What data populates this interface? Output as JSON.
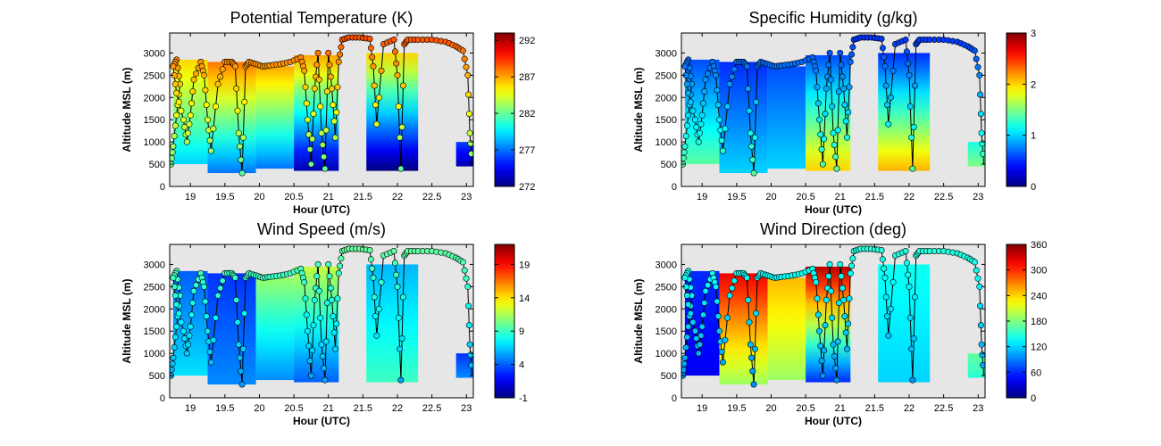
{
  "figure": {
    "background": "#ffffff",
    "axes_background": "#e6e6e6",
    "colormap": "jet"
  },
  "chart_data": [
    {
      "type": "heatmap",
      "title": "Potential Temperature (K)",
      "xlabel": "Hour (UTC)",
      "ylabel": "Altitude MSL (m)",
      "xlim": [
        18.7,
        23.1
      ],
      "ylim": [
        0,
        3450
      ],
      "x_ticks": [
        19,
        19.5,
        20,
        20.5,
        21,
        21.5,
        22,
        22.5,
        23
      ],
      "y_ticks": [
        0,
        500,
        1000,
        1500,
        2000,
        2500,
        3000
      ],
      "colorbar": {
        "range": [
          272,
          293
        ],
        "ticks": [
          272,
          277,
          282,
          287,
          292
        ]
      },
      "profiles": [
        {
          "x0": 18.75,
          "x1": 19.25,
          "ytop": 2850,
          "ybot": 500,
          "vtop": 286,
          "vbot": 279
        },
        {
          "x0": 19.25,
          "x1": 19.95,
          "ytop": 2800,
          "ybot": 300,
          "vtop": 288,
          "vbot": 277
        },
        {
          "x0": 19.95,
          "x1": 20.5,
          "ytop": 2700,
          "ybot": 400,
          "vtop": 287,
          "vbot": 277
        },
        {
          "x0": 20.5,
          "x1": 21.15,
          "ytop": 2950,
          "ybot": 350,
          "vtop": 287,
          "vbot": 273
        },
        {
          "x0": 21.55,
          "x1": 22.3,
          "ytop": 3000,
          "ybot": 350,
          "vtop": 286,
          "vbot": 272
        },
        {
          "x0": 22.85,
          "x1": 23.1,
          "ytop": 1000,
          "ybot": 450,
          "vtop": 276,
          "vbot": 273
        }
      ],
      "track_colored": {
        "vtop": 289,
        "vbot": 281
      }
    },
    {
      "type": "heatmap",
      "title": "Specific Humidity (g/kg)",
      "xlabel": "Hour (UTC)",
      "ylabel": "Altitude MSL (m)",
      "xlim": [
        18.7,
        23.1
      ],
      "ylim": [
        0,
        3450
      ],
      "x_ticks": [
        19,
        19.5,
        20,
        20.5,
        21,
        21.5,
        22,
        22.5,
        23
      ],
      "y_ticks": [
        0,
        500,
        1000,
        1500,
        2000,
        2500,
        3000
      ],
      "colorbar": {
        "range": [
          0,
          3
        ],
        "ticks": [
          0,
          1,
          2,
          3
        ]
      },
      "profiles": [
        {
          "x0": 18.75,
          "x1": 19.25,
          "ytop": 2850,
          "ybot": 500,
          "vtop": 0.6,
          "vbot": 1.4
        },
        {
          "x0": 19.25,
          "x1": 19.95,
          "ytop": 2800,
          "ybot": 300,
          "vtop": 0.5,
          "vbot": 1.0
        },
        {
          "x0": 19.95,
          "x1": 20.5,
          "ytop": 2700,
          "ybot": 400,
          "vtop": 0.6,
          "vbot": 1.0
        },
        {
          "x0": 20.5,
          "x1": 21.15,
          "ytop": 2950,
          "ybot": 350,
          "vtop": 0.6,
          "vbot": 2.0
        },
        {
          "x0": 21.55,
          "x1": 22.3,
          "ytop": 3000,
          "ybot": 350,
          "vtop": 0.5,
          "vbot": 2.1
        },
        {
          "x0": 22.85,
          "x1": 23.1,
          "ytop": 1000,
          "ybot": 450,
          "vtop": 1.2,
          "vbot": 1.5
        }
      ],
      "track_colored": {
        "vtop": 0.5,
        "vbot": 1.5
      }
    },
    {
      "type": "heatmap",
      "title": "Wind Speed (m/s)",
      "xlabel": "Hour (UTC)",
      "ylabel": "Altitude MSL (m)",
      "xlim": [
        18.7,
        23.1
      ],
      "ylim": [
        0,
        3450
      ],
      "x_ticks": [
        19,
        19.5,
        20,
        20.5,
        21,
        21.5,
        22,
        22.5,
        23
      ],
      "y_ticks": [
        0,
        500,
        1000,
        1500,
        2000,
        2500,
        3000
      ],
      "colorbar": {
        "range": [
          -1,
          22
        ],
        "ticks": [
          -1,
          4,
          9,
          14,
          19
        ]
      },
      "profiles": [
        {
          "x0": 18.75,
          "x1": 19.25,
          "ytop": 2850,
          "ybot": 500,
          "vtop": 4,
          "vbot": 7
        },
        {
          "x0": 19.25,
          "x1": 19.95,
          "ytop": 2800,
          "ybot": 300,
          "vtop": 3,
          "vbot": 5
        },
        {
          "x0": 19.95,
          "x1": 20.5,
          "ytop": 2700,
          "ybot": 400,
          "vtop": 11,
          "vbot": 5
        },
        {
          "x0": 20.5,
          "x1": 21.15,
          "ytop": 2950,
          "ybot": 350,
          "vtop": 12,
          "vbot": 4
        },
        {
          "x0": 21.55,
          "x1": 22.3,
          "ytop": 3000,
          "ybot": 350,
          "vtop": 6,
          "vbot": 9
        },
        {
          "x0": 22.85,
          "x1": 23.1,
          "ytop": 1000,
          "ybot": 450,
          "vtop": 3,
          "vbot": 5
        }
      ],
      "track_colored": {
        "vtop": 10,
        "vbot": 5
      }
    },
    {
      "type": "heatmap",
      "title": "Wind Direction (deg)",
      "xlabel": "Hour (UTC)",
      "ylabel": "Altitude MSL (m)",
      "xlim": [
        18.7,
        23.1
      ],
      "ylim": [
        0,
        3450
      ],
      "x_ticks": [
        19,
        19.5,
        20,
        20.5,
        21,
        21.5,
        22,
        22.5,
        23
      ],
      "y_ticks": [
        0,
        500,
        1000,
        1500,
        2000,
        2500,
        3000
      ],
      "colorbar": {
        "range": [
          0,
          360
        ],
        "ticks": [
          0,
          60,
          120,
          180,
          240,
          300,
          360
        ]
      },
      "profiles": [
        {
          "x0": 18.75,
          "x1": 19.25,
          "ytop": 2850,
          "ybot": 500,
          "vtop": 60,
          "vbot": 40
        },
        {
          "x0": 19.25,
          "x1": 19.95,
          "ytop": 2800,
          "ybot": 300,
          "vtop": 320,
          "vbot": 190
        },
        {
          "x0": 19.95,
          "x1": 20.5,
          "ytop": 2700,
          "ybot": 400,
          "vtop": 250,
          "vbot": 190
        },
        {
          "x0": 20.5,
          "x1": 21.15,
          "ytop": 2950,
          "ybot": 350,
          "vtop": 340,
          "vbot": 60
        },
        {
          "x0": 21.55,
          "x1": 22.3,
          "ytop": 3000,
          "ybot": 350,
          "vtop": 140,
          "vbot": 120
        },
        {
          "x0": 22.85,
          "x1": 23.1,
          "ytop": 1000,
          "ybot": 450,
          "vtop": 170,
          "vbot": 150
        }
      ],
      "track_colored": {
        "vtop": 150,
        "vbot": 90
      }
    }
  ],
  "flight_track": {
    "x": [
      18.72,
      18.75,
      18.8,
      18.85,
      18.8,
      18.75,
      18.8,
      18.9,
      18.95,
      19.0,
      19.05,
      19.15,
      19.2,
      19.25,
      19.3,
      19.4,
      19.5,
      19.6,
      19.65,
      19.7,
      19.75,
      19.8,
      19.85,
      19.95,
      20.05,
      20.15,
      20.3,
      20.45,
      20.6,
      20.65,
      20.7,
      20.75,
      20.8,
      20.85,
      20.9,
      20.95,
      21.0,
      21.05,
      21.1,
      21.15,
      21.2,
      21.3,
      21.45,
      21.6,
      21.65,
      21.7,
      21.8,
      21.95,
      22.0,
      22.05,
      22.1,
      22.15,
      22.3,
      22.5,
      22.7,
      22.85,
      22.95,
      23.02,
      23.05,
      23.08
    ],
    "y": [
      500,
      900,
      1600,
      2300,
      2850,
      2700,
      2100,
      1500,
      1000,
      1600,
      2400,
      2800,
      2500,
      1500,
      800,
      2300,
      2800,
      2800,
      2700,
      1200,
      300,
      2700,
      2800,
      2750,
      2700,
      2720,
      2750,
      2800,
      2900,
      2600,
      1500,
      500,
      2200,
      3000,
      1200,
      400,
      3000,
      2200,
      1100,
      2800,
      3300,
      3350,
      3350,
      3320,
      2700,
      1400,
      3200,
      3300,
      2500,
      400,
      3200,
      3300,
      3300,
      3300,
      3250,
      3150,
      3050,
      2500,
      1200,
      500
    ]
  }
}
